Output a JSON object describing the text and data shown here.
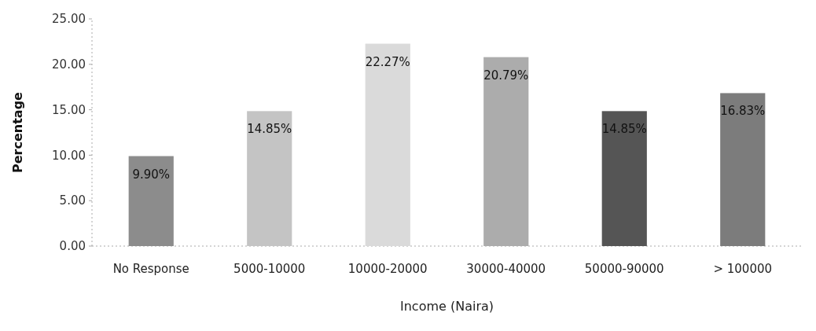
{
  "chart_data": {
    "type": "bar",
    "xlabel": "Income (Naira)",
    "ylabel": "Percentage",
    "categories": [
      "No Response",
      "5000-10000",
      "10000-20000",
      "30000-40000",
      "50000-90000",
      "> 100000"
    ],
    "values": [
      9.9,
      14.85,
      22.27,
      20.79,
      14.85,
      16.83
    ],
    "value_labels": [
      "9.90%",
      "14.85%",
      "22.27%",
      "20.79%",
      "14.85%",
      "16.83%"
    ],
    "colors": [
      "#8c8c8c",
      "#c4c4c4",
      "#dadada",
      "#acacac",
      "#555555",
      "#7c7c7c"
    ],
    "ylim": [
      0,
      25
    ],
    "yticks": [
      {
        "value": 0,
        "label": "0.00"
      },
      {
        "value": 5,
        "label": "5.00"
      },
      {
        "value": 10,
        "label": "10.00"
      },
      {
        "value": 15,
        "label": "15.00"
      },
      {
        "value": 20,
        "label": "20.00"
      },
      {
        "value": 25,
        "label": "25.00"
      }
    ],
    "grid": false
  }
}
